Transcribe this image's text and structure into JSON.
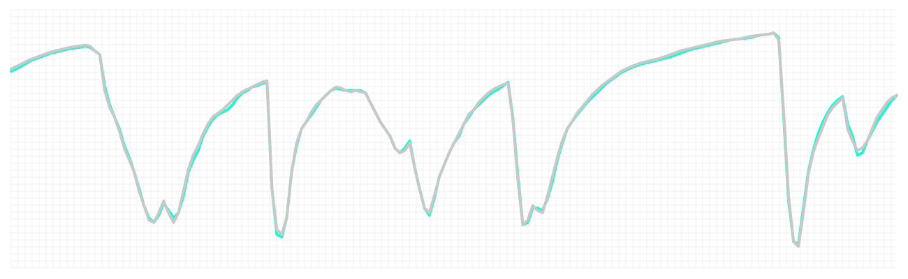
{
  "chart_data": {
    "type": "line",
    "title": "",
    "xlabel": "",
    "ylabel": "",
    "grid": true,
    "legend": "none",
    "xlim": [
      0,
      180
    ],
    "ylim": [
      0,
      100
    ],
    "series": [
      {
        "color": "#1ef7d2",
        "points": [
          [
            0,
            79
          ],
          [
            2,
            81
          ],
          [
            4,
            83.5
          ],
          [
            6,
            85
          ],
          [
            8,
            86.5
          ],
          [
            10,
            87.5
          ],
          [
            12,
            88.5
          ],
          [
            14,
            89
          ],
          [
            15,
            89.5
          ],
          [
            16,
            89
          ],
          [
            17,
            87.5
          ],
          [
            18,
            86
          ],
          [
            19,
            73
          ],
          [
            20,
            65
          ],
          [
            21,
            60
          ],
          [
            22,
            55
          ],
          [
            23,
            48
          ],
          [
            24,
            43
          ],
          [
            25,
            37
          ],
          [
            26,
            30
          ],
          [
            27,
            23
          ],
          [
            28,
            18
          ],
          [
            29,
            16
          ],
          [
            30,
            19
          ],
          [
            31,
            24
          ],
          [
            32,
            21
          ],
          [
            33,
            18
          ],
          [
            34,
            20
          ],
          [
            35,
            27
          ],
          [
            36,
            37
          ],
          [
            37,
            42
          ],
          [
            38,
            46
          ],
          [
            39,
            52
          ],
          [
            40,
            56
          ],
          [
            41,
            59
          ],
          [
            42,
            61
          ],
          [
            43,
            62
          ],
          [
            44,
            63
          ],
          [
            45,
            65
          ],
          [
            46,
            68
          ],
          [
            47,
            70
          ],
          [
            48,
            71
          ],
          [
            49,
            72.5
          ],
          [
            50,
            73
          ],
          [
            51,
            74
          ],
          [
            52,
            74.5
          ],
          [
            53,
            30
          ],
          [
            54,
            11
          ],
          [
            55,
            10
          ],
          [
            56,
            18
          ],
          [
            57,
            37
          ],
          [
            58,
            48
          ],
          [
            59,
            55
          ],
          [
            60,
            58
          ],
          [
            61,
            61
          ],
          [
            62,
            64
          ],
          [
            63,
            67
          ],
          [
            64,
            69
          ],
          [
            65,
            71
          ],
          [
            66,
            72
          ],
          [
            67,
            71.5
          ],
          [
            68,
            71
          ],
          [
            69,
            71
          ],
          [
            70,
            71
          ],
          [
            71,
            71
          ],
          [
            72,
            70
          ],
          [
            73,
            66
          ],
          [
            74,
            62
          ],
          [
            75,
            58
          ],
          [
            76,
            55
          ],
          [
            77,
            52
          ],
          [
            78,
            47
          ],
          [
            79,
            45
          ],
          [
            80,
            47
          ],
          [
            81,
            50
          ],
          [
            82,
            39
          ],
          [
            83,
            30
          ],
          [
            84,
            22
          ],
          [
            85,
            19
          ],
          [
            86,
            26
          ],
          [
            87,
            35
          ],
          [
            88,
            40
          ],
          [
            89,
            45
          ],
          [
            90,
            49
          ],
          [
            91,
            52
          ],
          [
            92,
            57
          ],
          [
            93,
            60
          ],
          [
            94,
            63
          ],
          [
            95,
            65
          ],
          [
            96,
            67
          ],
          [
            97,
            69
          ],
          [
            98,
            70.5
          ],
          [
            99,
            71.5
          ],
          [
            100,
            73
          ],
          [
            101,
            74.5
          ],
          [
            102,
            59
          ],
          [
            103,
            35
          ],
          [
            104,
            15
          ],
          [
            105,
            16
          ],
          [
            106,
            22
          ],
          [
            107,
            22
          ],
          [
            108,
            21
          ],
          [
            109,
            26
          ],
          [
            110,
            33
          ],
          [
            111,
            42
          ],
          [
            112,
            49
          ],
          [
            113,
            55
          ],
          [
            114,
            58
          ],
          [
            115,
            61
          ],
          [
            116,
            63.5
          ],
          [
            117,
            66
          ],
          [
            118,
            68
          ],
          [
            119,
            70
          ],
          [
            120,
            72
          ],
          [
            121,
            74
          ],
          [
            122,
            75.5
          ],
          [
            123,
            77
          ],
          [
            124,
            78.5
          ],
          [
            125,
            79.5
          ],
          [
            126,
            80.5
          ],
          [
            128,
            82
          ],
          [
            130,
            83
          ],
          [
            132,
            84
          ],
          [
            134,
            85
          ],
          [
            136,
            86.5
          ],
          [
            138,
            88
          ],
          [
            140,
            89
          ],
          [
            142,
            90
          ],
          [
            144,
            91
          ],
          [
            146,
            92
          ],
          [
            148,
            92.5
          ],
          [
            150,
            93
          ],
          [
            152,
            94
          ],
          [
            154,
            94.5
          ],
          [
            155,
            95
          ],
          [
            156,
            93
          ],
          [
            157,
            60
          ],
          [
            158,
            25
          ],
          [
            159,
            8
          ],
          [
            160,
            7
          ],
          [
            161,
            22
          ],
          [
            162,
            37
          ],
          [
            163,
            46
          ],
          [
            164,
            53
          ],
          [
            165,
            58
          ],
          [
            166,
            62
          ],
          [
            167,
            65
          ],
          [
            168,
            67
          ],
          [
            169,
            68.5
          ],
          [
            170,
            57
          ],
          [
            171,
            52
          ],
          [
            172,
            44
          ],
          [
            173,
            45
          ],
          [
            174,
            50
          ],
          [
            175,
            54
          ],
          [
            176,
            58
          ],
          [
            177,
            61
          ],
          [
            178,
            64
          ],
          [
            179,
            67
          ],
          [
            180,
            69
          ]
        ]
      },
      {
        "color": "#c8c8c8",
        "points": [
          [
            0,
            80
          ],
          [
            2,
            82
          ],
          [
            4,
            84
          ],
          [
            6,
            85.5
          ],
          [
            8,
            87
          ],
          [
            10,
            88
          ],
          [
            12,
            89
          ],
          [
            14,
            89.5
          ],
          [
            15,
            90
          ],
          [
            16,
            89.5
          ],
          [
            17,
            87.5
          ],
          [
            18,
            86
          ],
          [
            19,
            71
          ],
          [
            20,
            64
          ],
          [
            21,
            60
          ],
          [
            22,
            54
          ],
          [
            23,
            47
          ],
          [
            24,
            42
          ],
          [
            25,
            37
          ],
          [
            26,
            29
          ],
          [
            27,
            23
          ],
          [
            28,
            17
          ],
          [
            29,
            16
          ],
          [
            30,
            20
          ],
          [
            31,
            25
          ],
          [
            32,
            20
          ],
          [
            33,
            16
          ],
          [
            34,
            20
          ],
          [
            35,
            29
          ],
          [
            36,
            38
          ],
          [
            37,
            44
          ],
          [
            38,
            48
          ],
          [
            39,
            53
          ],
          [
            40,
            57
          ],
          [
            41,
            60
          ],
          [
            42,
            61.5
          ],
          [
            43,
            63
          ],
          [
            44,
            65
          ],
          [
            45,
            67
          ],
          [
            46,
            69
          ],
          [
            47,
            70.5
          ],
          [
            48,
            71.5
          ],
          [
            49,
            72.5
          ],
          [
            50,
            73.5
          ],
          [
            51,
            74.5
          ],
          [
            52,
            75
          ],
          [
            53,
            30
          ],
          [
            54,
            13
          ],
          [
            55,
            11
          ],
          [
            56,
            18
          ],
          [
            57,
            37
          ],
          [
            58,
            49
          ],
          [
            59,
            55
          ],
          [
            60,
            58
          ],
          [
            61,
            62
          ],
          [
            62,
            65
          ],
          [
            63,
            67
          ],
          [
            64,
            69
          ],
          [
            65,
            71
          ],
          [
            66,
            72.5
          ],
          [
            67,
            72
          ],
          [
            68,
            71
          ],
          [
            69,
            70.5
          ],
          [
            70,
            71
          ],
          [
            71,
            70.5
          ],
          [
            72,
            70
          ],
          [
            73,
            66
          ],
          [
            74,
            62
          ],
          [
            75,
            58
          ],
          [
            76,
            55
          ],
          [
            77,
            52
          ],
          [
            78,
            47
          ],
          [
            79,
            45
          ],
          [
            80,
            46
          ],
          [
            81,
            49
          ],
          [
            82,
            39
          ],
          [
            83,
            30
          ],
          [
            84,
            22
          ],
          [
            85,
            20
          ],
          [
            86,
            27
          ],
          [
            87,
            35
          ],
          [
            88,
            40
          ],
          [
            89,
            45
          ],
          [
            90,
            49
          ],
          [
            91,
            53
          ],
          [
            92,
            57
          ],
          [
            93,
            61
          ],
          [
            94,
            63
          ],
          [
            95,
            66
          ],
          [
            96,
            68
          ],
          [
            97,
            70
          ],
          [
            98,
            71.5
          ],
          [
            99,
            72.5
          ],
          [
            100,
            73.5
          ],
          [
            101,
            74
          ],
          [
            102,
            58
          ],
          [
            103,
            33
          ],
          [
            104,
            15
          ],
          [
            105,
            17
          ],
          [
            106,
            23
          ],
          [
            107,
            21
          ],
          [
            108,
            20
          ],
          [
            109,
            27
          ],
          [
            110,
            35
          ],
          [
            111,
            43
          ],
          [
            112,
            50
          ],
          [
            113,
            55
          ],
          [
            114,
            58
          ],
          [
            115,
            61.5
          ],
          [
            116,
            64
          ],
          [
            117,
            66.5
          ],
          [
            118,
            69
          ],
          [
            119,
            71
          ],
          [
            120,
            73
          ],
          [
            121,
            74.5
          ],
          [
            122,
            76
          ],
          [
            123,
            77.5
          ],
          [
            124,
            79
          ],
          [
            125,
            80
          ],
          [
            126,
            81
          ],
          [
            128,
            82.5
          ],
          [
            130,
            83.5
          ],
          [
            132,
            84.5
          ],
          [
            134,
            86
          ],
          [
            136,
            87.5
          ],
          [
            138,
            88.5
          ],
          [
            140,
            89.5
          ],
          [
            142,
            90.5
          ],
          [
            144,
            91.5
          ],
          [
            146,
            92
          ],
          [
            148,
            92.5
          ],
          [
            150,
            93.5
          ],
          [
            152,
            94
          ],
          [
            154,
            94.5
          ],
          [
            155,
            95
          ],
          [
            156,
            92
          ],
          [
            157,
            62
          ],
          [
            158,
            27
          ],
          [
            159,
            8
          ],
          [
            160,
            6
          ],
          [
            161,
            20
          ],
          [
            162,
            36
          ],
          [
            163,
            45
          ],
          [
            164,
            51
          ],
          [
            165,
            56
          ],
          [
            166,
            61
          ],
          [
            167,
            64
          ],
          [
            168,
            66
          ],
          [
            169,
            68
          ],
          [
            170,
            55
          ],
          [
            171,
            50
          ],
          [
            172,
            46
          ],
          [
            173,
            47
          ],
          [
            174,
            50
          ],
          [
            175,
            55
          ],
          [
            176,
            60
          ],
          [
            177,
            63
          ],
          [
            178,
            66
          ],
          [
            179,
            68
          ],
          [
            180,
            69
          ]
        ]
      }
    ]
  }
}
